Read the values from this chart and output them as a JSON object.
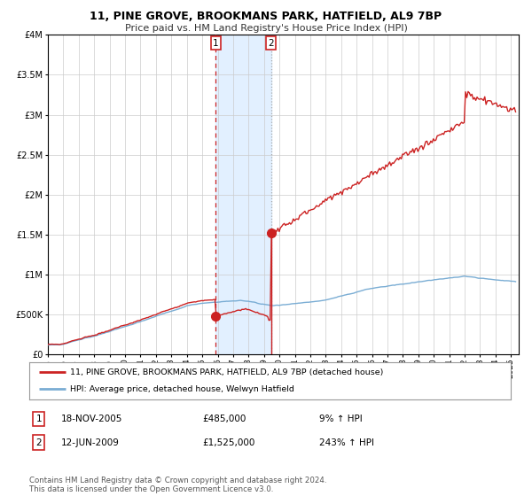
{
  "title1": "11, PINE GROVE, BROOKMANS PARK, HATFIELD, AL9 7BP",
  "title2": "Price paid vs. HM Land Registry's House Price Index (HPI)",
  "ylim": [
    0,
    4000000
  ],
  "xlim_start": 1995.0,
  "xlim_end": 2025.5,
  "hpi_color": "#7aadd4",
  "price_color": "#cc2222",
  "purchase1_date": 2005.88,
  "purchase1_price": 485000,
  "purchase2_date": 2009.46,
  "purchase2_price": 1525000,
  "legend_label1": "11, PINE GROVE, BROOKMANS PARK, HATFIELD, AL9 7BP (detached house)",
  "legend_label2": "HPI: Average price, detached house, Welwyn Hatfield",
  "table_row1": [
    "1",
    "18-NOV-2005",
    "£485,000",
    "9% ↑ HPI"
  ],
  "table_row2": [
    "2",
    "12-JUN-2009",
    "£1,525,000",
    "243% ↑ HPI"
  ],
  "footnote": "Contains HM Land Registry data © Crown copyright and database right 2024.\nThis data is licensed under the Open Government Licence v3.0.",
  "bg_color": "#ffffff",
  "grid_color": "#cccccc",
  "shade_color": "#ddeeff",
  "yticks": [
    0,
    500000,
    1000000,
    1500000,
    2000000,
    2500000,
    3000000,
    3500000,
    4000000
  ],
  "ytick_labels": [
    "£0",
    "£500K",
    "£1M",
    "£1.5M",
    "£2M",
    "£2.5M",
    "£3M",
    "£3.5M",
    "£4M"
  ]
}
